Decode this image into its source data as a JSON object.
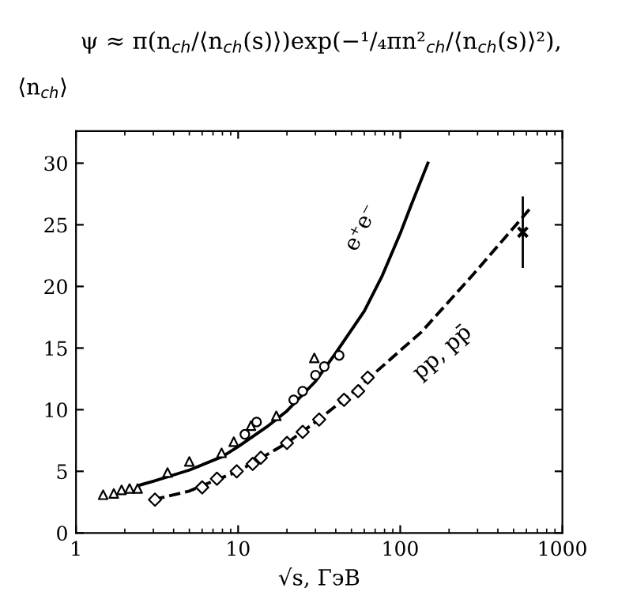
{
  "chart_data": {
    "type": "line",
    "title": "ψ ≈ π(n$_{ch}$/⟨n$_{ch}$(s)⟩)exp(−¹/₄πn²$_{ch}$/⟨n$_{ch}$(s)⟩²),",
    "ylabel": "⟨n$_{ch}$⟩",
    "xlabel": "√s, ГэВ",
    "log": "x",
    "xlim": [
      1,
      1000
    ],
    "xticks": [
      1,
      10,
      100,
      1000
    ],
    "ylim": [
      0,
      32.6
    ],
    "yticks": [
      0,
      5,
      10,
      15,
      20,
      25,
      30
    ],
    "grid": false,
    "legend": false,
    "series": [
      {
        "name": "e⁺e⁻",
        "line_style": "solid",
        "marker": "none",
        "color": "#000000",
        "x": [
          2.5,
          3,
          5,
          8,
          10,
          15,
          20,
          30,
          40,
          60,
          77,
          100,
          116,
          148
        ],
        "values": [
          3.9,
          4.2,
          5.1,
          6.2,
          7.0,
          8.6,
          9.9,
          12.3,
          14.6,
          18.0,
          20.8,
          24.3,
          26.5,
          30
        ]
      },
      {
        "name": "pp, pp̄",
        "line_style": "dashed",
        "marker": "none",
        "color": "#000000",
        "x": [
          3,
          5,
          7,
          10,
          20,
          30,
          50,
          70,
          100,
          135,
          283,
          650
        ],
        "values": [
          2.7,
          3.4,
          4.2,
          5.0,
          7.3,
          9.0,
          11.3,
          13,
          14.8,
          16.3,
          21,
          26.5
        ]
      },
      {
        "type": "scatter",
        "marker": "triangle",
        "color": "#000000",
        "x": [
          1.47,
          1.71,
          1.91,
          2.14,
          2.4
        ],
        "values": [
          3.1,
          3.2,
          3.5,
          3.6,
          3.6
        ]
      },
      {
        "type": "scatter",
        "marker": "triangle",
        "color": "#000000",
        "x": [
          3.67,
          5.0,
          7.9,
          9.4,
          12,
          17.2,
          29.5
        ],
        "values": [
          4.9,
          5.8,
          6.5,
          7.4,
          8.7,
          9.5,
          14.2
        ]
      },
      {
        "type": "scatter",
        "marker": "circle",
        "color": "#000000",
        "x": [
          11,
          13,
          22,
          25,
          30,
          34,
          42
        ],
        "values": [
          8,
          9,
          10.8,
          11.5,
          12.8,
          13.5,
          14.4
        ]
      },
      {
        "type": "scatter",
        "marker": "diamond",
        "color": "#000000",
        "x": [
          3.07,
          6.0,
          7.4,
          9.8,
          12.3,
          13.8,
          20,
          25,
          31.6,
          45,
          55,
          63
        ],
        "values": [
          2.7,
          3.7,
          4.4,
          5.0,
          5.6,
          6.1,
          7.3,
          8.2,
          9.2,
          10.8,
          11.5,
          12.6
        ]
      },
      {
        "type": "scatter",
        "marker": "cross",
        "color": "#000000",
        "x": [
          570
        ],
        "values": [
          24.4
        ],
        "errors": [
          2.9
        ]
      }
    ]
  }
}
